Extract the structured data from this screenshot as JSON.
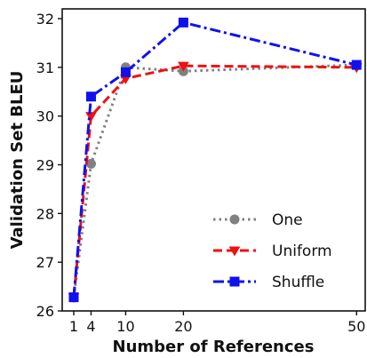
{
  "chart_data": {
    "type": "line",
    "xlabel": "Number of References",
    "ylabel": "Validation Set BLEU",
    "x": [
      1,
      4,
      10,
      20,
      50
    ],
    "xlim": [
      -1,
      51.5
    ],
    "ylim": [
      26,
      32.2
    ],
    "xticks": [
      1,
      4,
      10,
      20,
      50
    ],
    "yticks": [
      26,
      27,
      28,
      29,
      30,
      31,
      32
    ],
    "grid": false,
    "legend_position": "bottom-right",
    "series": [
      {
        "name": "One",
        "values": [
          26.28,
          29.02,
          31.0,
          30.92,
          31.05
        ],
        "color": "#808080",
        "marker": "circle",
        "linestyle": "dotted"
      },
      {
        "name": "Uniform",
        "values": [
          26.28,
          30.0,
          30.77,
          31.03,
          31.0
        ],
        "color": "#ee1111",
        "marker": "triangle-down",
        "linestyle": "dashed"
      },
      {
        "name": "Shuffle",
        "values": [
          26.28,
          30.4,
          30.9,
          31.92,
          31.05
        ],
        "color": "#1111ee",
        "marker": "square",
        "linestyle": "dashdot"
      }
    ]
  }
}
